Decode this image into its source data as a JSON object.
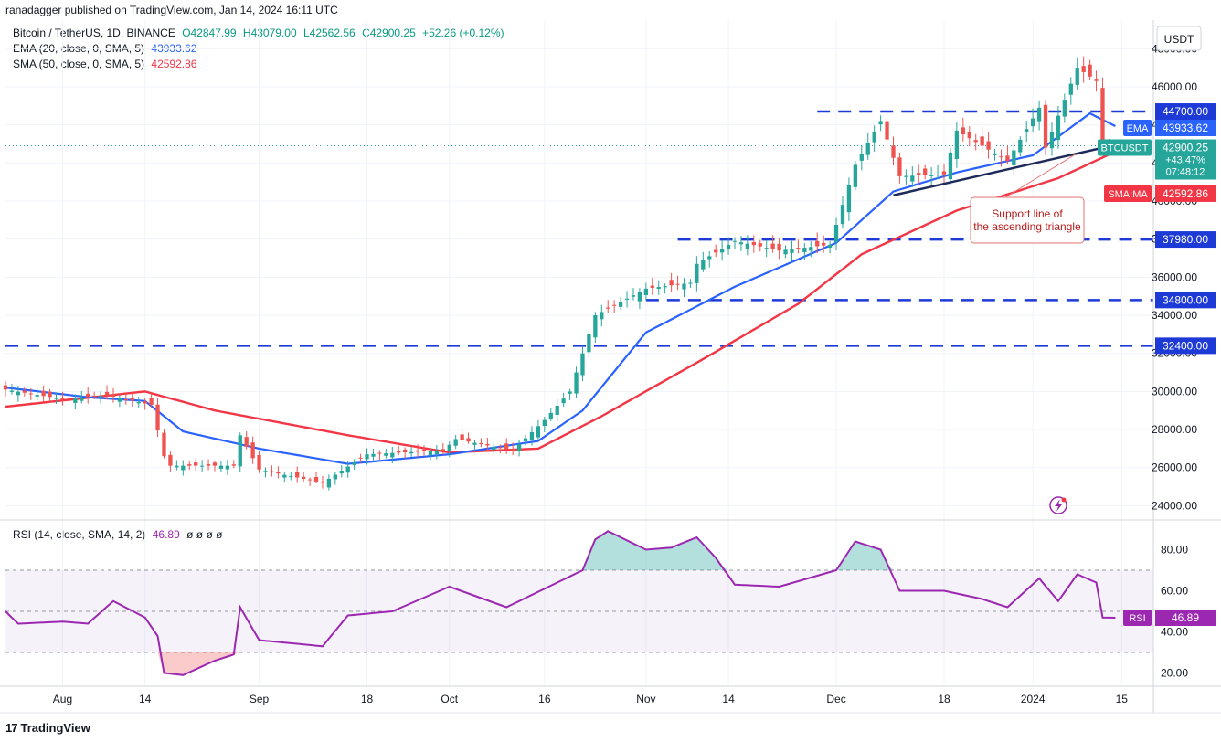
{
  "caption": "ranadagger published on TradingView.com, Jan 14, 2024 16:11 UTC",
  "brand": "TradingView",
  "brand_logo": "17",
  "currency_label": "USDT",
  "legend": {
    "main": {
      "name": "Bitcoin / TetherUS, 1D, BINANCE",
      "o": "O42847.99",
      "h": "H43079.00",
      "l": "L42562.56",
      "c": "C42900.25",
      "chg": "+52.26 (+0.12%)"
    },
    "ema": {
      "label": "EMA (20, close, 0, SMA, 5)",
      "value": "43933.62"
    },
    "sma": {
      "label": "SMA (50, close, 0, SMA, 5)",
      "value": "42592.86"
    },
    "rsi": {
      "label": "RSI (14, close, SMA, 14, 2)",
      "value": "46.89",
      "extra": "ø ø ø ø"
    }
  },
  "colors": {
    "up": "#26a69a",
    "down": "#ef5350",
    "ema": "#2962ff",
    "sma": "#f23645",
    "rsi": "#9c27b0",
    "level": "#1e3ad6",
    "support": "#1e2a5a",
    "grid": "#f0f3fa"
  },
  "chart_data": [
    {
      "type": "candlestick",
      "title": "Bitcoin / TetherUS, 1D, BINANCE",
      "ylabel": "USDT",
      "ylim": [
        23300,
        49500
      ],
      "x_range": [
        "2023-07-23",
        "2024-01-20"
      ],
      "x_ticks": [
        {
          "date": "2023-08-01",
          "label": "Aug"
        },
        {
          "date": "2023-08-14",
          "label": "14"
        },
        {
          "date": "2023-09-01",
          "label": "Sep"
        },
        {
          "date": "2023-09-18",
          "label": "18"
        },
        {
          "date": "2023-10-01",
          "label": "Oct"
        },
        {
          "date": "2023-10-16",
          "label": "16"
        },
        {
          "date": "2023-11-01",
          "label": "Nov"
        },
        {
          "date": "2023-11-14",
          "label": "14"
        },
        {
          "date": "2023-12-01",
          "label": "Dec"
        },
        {
          "date": "2023-12-18",
          "label": "18"
        },
        {
          "date": "2024-01-01",
          "label": "2024"
        },
        {
          "date": "2024-01-15",
          "label": "15"
        }
      ],
      "y_ticks": [
        "24000.00",
        "26000.00",
        "28000.00",
        "30000.00",
        "32000.00",
        "34000.00",
        "36000.00",
        "38000.00",
        "40000.00",
        "42000.00",
        "44000.00",
        "46000.00",
        "48000.00"
      ],
      "close_anchors": [
        [
          "2023-07-23",
          30100
        ],
        [
          "2023-08-01",
          29600
        ],
        [
          "2023-08-08",
          29800
        ],
        [
          "2023-08-15",
          29300
        ],
        [
          "2023-08-17",
          26600
        ],
        [
          "2023-08-18",
          26100
        ],
        [
          "2023-08-28",
          26100
        ],
        [
          "2023-08-29",
          27700
        ],
        [
          "2023-09-01",
          25900
        ],
        [
          "2023-09-11",
          25200
        ],
        [
          "2023-09-18",
          26700
        ],
        [
          "2023-09-30",
          26900
        ],
        [
          "2023-10-02",
          27500
        ],
        [
          "2023-10-11",
          26900
        ],
        [
          "2023-10-16",
          28500
        ],
        [
          "2023-10-20",
          30000
        ],
        [
          "2023-10-23",
          33000
        ],
        [
          "2023-10-24",
          34000
        ],
        [
          "2023-11-01",
          35400
        ],
        [
          "2023-11-08",
          35700
        ],
        [
          "2023-11-09",
          36700
        ],
        [
          "2023-11-15",
          37900
        ],
        [
          "2023-11-22",
          37400
        ],
        [
          "2023-11-30",
          37700
        ],
        [
          "2023-12-04",
          41900
        ],
        [
          "2023-12-08",
          44200
        ],
        [
          "2023-12-11",
          41300
        ],
        [
          "2023-12-18",
          41400
        ],
        [
          "2023-12-20",
          43700
        ],
        [
          "2023-12-28",
          42100
        ],
        [
          "2024-01-02",
          44900
        ],
        [
          "2024-01-03",
          42800
        ],
        [
          "2024-01-08",
          47000
        ],
        [
          "2024-01-11",
          46300
        ],
        [
          "2024-01-12",
          42800
        ],
        [
          "2024-01-14",
          42900
        ]
      ],
      "ema20_anchors": [
        [
          "2023-07-23",
          30200
        ],
        [
          "2023-08-05",
          29700
        ],
        [
          "2023-08-14",
          29500
        ],
        [
          "2023-08-20",
          27900
        ],
        [
          "2023-09-01",
          27000
        ],
        [
          "2023-09-15",
          26200
        ],
        [
          "2023-10-01",
          26700
        ],
        [
          "2023-10-15",
          27400
        ],
        [
          "2023-10-22",
          29000
        ],
        [
          "2023-11-01",
          33100
        ],
        [
          "2023-11-15",
          35500
        ],
        [
          "2023-12-01",
          37800
        ],
        [
          "2023-12-10",
          40500
        ],
        [
          "2023-12-20",
          41500
        ],
        [
          "2024-01-01",
          42400
        ],
        [
          "2024-01-10",
          44600
        ],
        [
          "2024-01-14",
          43934
        ]
      ],
      "sma50_anchors": [
        [
          "2023-07-23",
          29200
        ],
        [
          "2023-08-14",
          30000
        ],
        [
          "2023-08-25",
          29000
        ],
        [
          "2023-09-15",
          27700
        ],
        [
          "2023-10-01",
          26800
        ],
        [
          "2023-10-15",
          27000
        ],
        [
          "2023-10-25",
          28700
        ],
        [
          "2023-11-10",
          31700
        ],
        [
          "2023-11-25",
          34600
        ],
        [
          "2023-12-05",
          37200
        ],
        [
          "2023-12-20",
          39500
        ],
        [
          "2024-01-05",
          41200
        ],
        [
          "2024-01-14",
          42593
        ]
      ],
      "horizontal_levels": [
        {
          "value": 44700,
          "label": "44700.00",
          "from": "2023-11-28"
        },
        {
          "value": 37980,
          "label": "37980.00",
          "from": "2023-11-06"
        },
        {
          "value": 34800,
          "label": "34800.00",
          "from": "2023-11-01"
        },
        {
          "value": 32400,
          "label": "32400.00",
          "from": "2023-07-23"
        }
      ],
      "support_line": {
        "from": [
          "2023-12-10",
          40300
        ],
        "to": [
          "2024-01-16",
          43100
        ]
      },
      "annotation": "Support line of the ascending triangle",
      "price_tags": [
        {
          "label": "EMA",
          "value": "43933.62",
          "price": 43933.62,
          "color": "#2962ff"
        },
        {
          "label": "BTCUSDT",
          "value": "42900.25",
          "price": 42900.25,
          "color": "#26a69a",
          "extra": [
            "+43.47%",
            "07:48:12"
          ]
        },
        {
          "label": "SMA:MA",
          "value": "42592.86",
          "price": 42592.86,
          "color": "#f23645"
        }
      ]
    },
    {
      "type": "line",
      "title": "RSI (14, close, SMA, 14, 2)",
      "ylim": [
        14,
        94
      ],
      "y_ticks": [
        "20.00",
        "40.00",
        "60.00",
        "80.00"
      ],
      "band": [
        30,
        70
      ],
      "midline": 50,
      "rsi_anchors": [
        [
          "2023-07-23",
          50
        ],
        [
          "2023-07-25",
          44
        ],
        [
          "2023-08-01",
          45
        ],
        [
          "2023-08-05",
          44
        ],
        [
          "2023-08-09",
          55
        ],
        [
          "2023-08-14",
          47
        ],
        [
          "2023-08-16",
          38
        ],
        [
          "2023-08-17",
          20
        ],
        [
          "2023-08-20",
          19
        ],
        [
          "2023-08-25",
          26
        ],
        [
          "2023-08-28",
          29
        ],
        [
          "2023-08-29",
          52
        ],
        [
          "2023-09-01",
          36
        ],
        [
          "2023-09-11",
          33
        ],
        [
          "2023-09-15",
          48
        ],
        [
          "2023-09-22",
          50
        ],
        [
          "2023-10-01",
          62
        ],
        [
          "2023-10-10",
          52
        ],
        [
          "2023-10-16",
          61
        ],
        [
          "2023-10-22",
          70
        ],
        [
          "2023-10-24",
          85
        ],
        [
          "2023-10-26",
          89
        ],
        [
          "2023-11-01",
          80
        ],
        [
          "2023-11-05",
          81
        ],
        [
          "2023-11-09",
          86
        ],
        [
          "2023-11-12",
          76
        ],
        [
          "2023-11-15",
          63
        ],
        [
          "2023-11-22",
          62
        ],
        [
          "2023-12-01",
          70
        ],
        [
          "2023-12-04",
          84
        ],
        [
          "2023-12-08",
          80
        ],
        [
          "2023-12-11",
          60
        ],
        [
          "2023-12-18",
          60
        ],
        [
          "2023-12-24",
          56
        ],
        [
          "2023-12-28",
          52
        ],
        [
          "2024-01-02",
          66
        ],
        [
          "2024-01-05",
          55
        ],
        [
          "2024-01-08",
          68
        ],
        [
          "2024-01-11",
          64
        ],
        [
          "2024-01-12",
          47
        ],
        [
          "2024-01-14",
          46.89
        ]
      ],
      "price_tag": {
        "label": "RSI",
        "value": "46.89",
        "value_num": 46.89,
        "color": "#9c27b0"
      }
    }
  ]
}
